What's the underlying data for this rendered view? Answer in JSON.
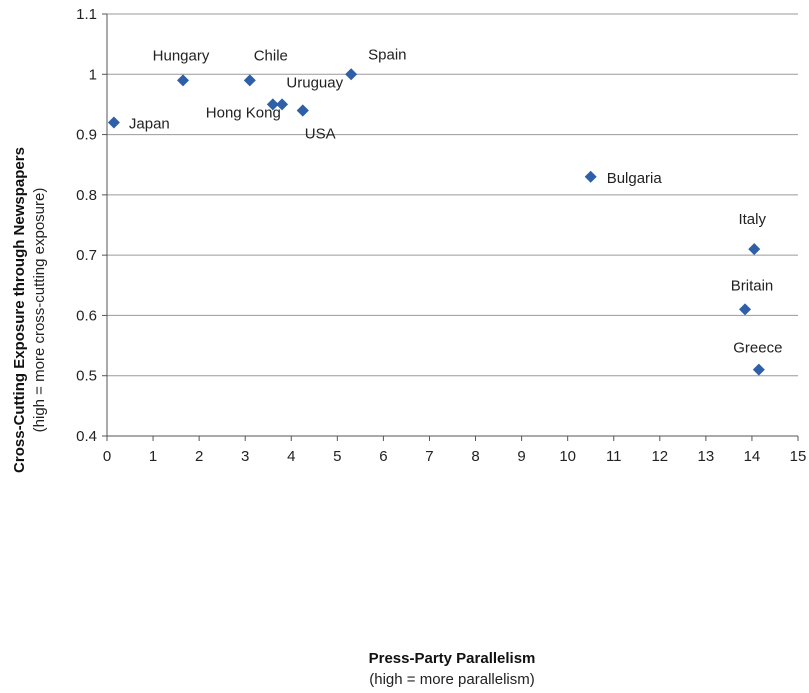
{
  "chart_data": {
    "type": "scatter",
    "xlabel": "Press-Party Parallelism",
    "xlabel_sub": "(high = more parallelism)",
    "ylabel": "Cross-Cutting Exposure through Newspapers",
    "ylabel_sub": "(high = more cross-cutting exposure)",
    "xlim": [
      0,
      15
    ],
    "ylim": [
      0.4,
      1.1
    ],
    "xticks": [
      "0",
      "1",
      "2",
      "3",
      "4",
      "5",
      "6",
      "7",
      "8",
      "9",
      "10",
      "11",
      "12",
      "13",
      "14",
      "15"
    ],
    "yticks": [
      "0.4",
      "0.5",
      "0.6",
      "0.7",
      "0.8",
      "0.9",
      "1",
      "1.1"
    ],
    "grid": "horizontal",
    "marker_color": "#2e5fa8",
    "points": [
      {
        "label": "Japan",
        "x": 0.15,
        "y": 0.92
      },
      {
        "label": "Hungary",
        "x": 1.65,
        "y": 0.99
      },
      {
        "label": "Chile",
        "x": 3.1,
        "y": 0.99
      },
      {
        "label": "Spain",
        "x": 5.3,
        "y": 1.0
      },
      {
        "label": "Hong Kong",
        "x": 3.6,
        "y": 0.95
      },
      {
        "label": "",
        "x": 3.8,
        "y": 0.95
      },
      {
        "label": "Uruguay",
        "x": 4.25,
        "y": 0.94
      },
      {
        "label": "USA",
        "x": 4.25,
        "y": 0.94
      },
      {
        "label": "Bulgaria",
        "x": 10.5,
        "y": 0.83
      },
      {
        "label": "Italy",
        "x": 14.05,
        "y": 0.71
      },
      {
        "label": "Britain",
        "x": 13.85,
        "y": 0.61
      },
      {
        "label": "Greece",
        "x": 14.15,
        "y": 0.51
      }
    ]
  }
}
